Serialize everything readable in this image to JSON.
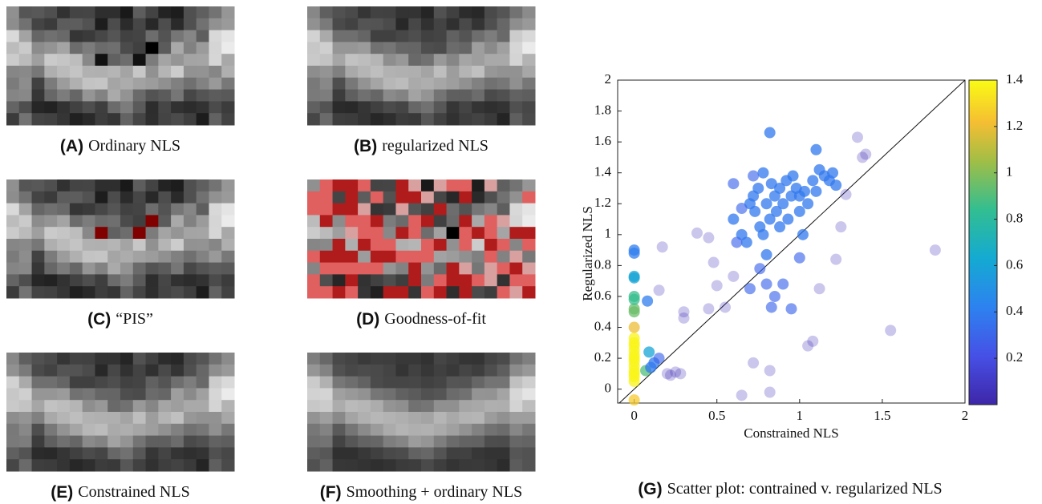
{
  "panels": [
    {
      "letter": "(A)",
      "caption": "Ordinary NLS"
    },
    {
      "letter": "(B)",
      "caption": "regularized NLS"
    },
    {
      "letter": "(C)",
      "caption": "“PIS”"
    },
    {
      "letter": "(D)",
      "caption": "Goodness-of-fit"
    },
    {
      "letter": "(E)",
      "caption": "Constrained NLS"
    },
    {
      "letter": "(F)",
      "caption": "Smoothing + ordinary NLS"
    }
  ],
  "chart_data": {
    "type": "scatter",
    "letter": "(G)",
    "title": "Scatter plot: contrained v. regularized NLS",
    "xlabel": "Constrained NLS",
    "ylabel": "Regularized NLS",
    "xlim": [
      -0.1,
      2
    ],
    "ylim": [
      -0.09,
      2
    ],
    "xticks": [
      0,
      0.5,
      1,
      1.5,
      2
    ],
    "yticks": [
      0,
      0.2,
      0.4,
      0.6,
      0.8,
      1,
      1.2,
      1.4,
      1.6,
      1.8,
      2
    ],
    "clim": [
      0,
      1.4
    ],
    "cticks": [
      0.2,
      0.4,
      0.6,
      0.8,
      1,
      1.2,
      1.4
    ],
    "x": [
      0,
      0,
      0,
      0,
      0,
      0,
      0,
      0,
      0,
      0,
      0,
      0,
      0,
      0,
      0,
      0,
      0,
      0,
      0,
      0,
      0,
      0,
      0.07,
      0.09,
      0.08,
      0.1,
      0.12,
      0.15,
      0.6,
      0.65,
      0.68,
      0.7,
      0.72,
      0.73,
      0.75,
      0.76,
      0.78,
      0.78,
      0.8,
      0.8,
      0.82,
      0.82,
      0.83,
      0.85,
      0.86,
      0.88,
      0.88,
      0.9,
      0.92,
      0.93,
      0.95,
      0.96,
      0.98,
      1.0,
      1.0,
      1.02,
      1.03,
      1.05,
      1.08,
      1.1,
      1.1,
      1.12,
      1.15,
      1.18,
      1.2,
      1.22,
      0.62,
      0.7,
      0.76,
      0.8,
      0.85,
      0.9,
      0.95,
      0.83,
      1.0,
      0.6,
      0.65,
      0.72,
      0.15,
      0.17,
      0.2,
      0.22,
      0.25,
      0.28,
      0.3,
      0.3,
      0.45,
      0.48,
      0.5,
      0.55,
      0.6,
      0.65,
      0.72,
      0.82,
      0.82,
      1.05,
      1.08,
      1.12,
      1.22,
      1.25,
      1.28,
      1.35,
      1.38,
      1.4,
      1.55,
      1.82,
      0.38,
      0.45
    ],
    "y": [
      0.05,
      0.08,
      0.1,
      0.12,
      0.15,
      0.18,
      0.2,
      0.22,
      0.25,
      0.28,
      0.3,
      0.33,
      0.4,
      -0.07,
      0.5,
      0.52,
      0.6,
      0.58,
      0.72,
      0.73,
      0.88,
      0.9,
      0.12,
      0.24,
      0.57,
      0.14,
      0.17,
      0.2,
      1.1,
      1.0,
      0.95,
      1.2,
      1.25,
      1.15,
      1.3,
      1.05,
      1.0,
      1.4,
      1.2,
      0.87,
      1.1,
      1.66,
      1.33,
      1.25,
      1.15,
      1.05,
      1.3,
      1.2,
      1.35,
      1.1,
      1.25,
      1.38,
      1.3,
      1.15,
      1.25,
      1.0,
      1.28,
      1.2,
      1.35,
      1.55,
      1.28,
      1.42,
      1.38,
      1.35,
      1.4,
      1.32,
      0.95,
      0.65,
      0.78,
      0.68,
      0.6,
      0.68,
      0.52,
      0.53,
      0.85,
      1.33,
      1.17,
      1.38,
      0.64,
      0.92,
      0.1,
      0.09,
      0.11,
      0.1,
      0.5,
      0.46,
      0.52,
      0.82,
      0.67,
      0.53,
      0.73,
      -0.04,
      0.17,
      -0.02,
      0.12,
      0.28,
      0.31,
      0.65,
      0.84,
      1.05,
      1.26,
      1.63,
      1.5,
      1.52,
      0.38,
      0.9,
      1.01,
      0.98
    ],
    "c": [
      1.38,
      1.38,
      1.38,
      1.38,
      1.38,
      1.38,
      1.38,
      1.38,
      1.38,
      1.38,
      1.38,
      1.38,
      1.2,
      1.25,
      0.95,
      0.95,
      0.85,
      0.85,
      0.6,
      0.6,
      0.4,
      0.4,
      0.9,
      0.6,
      0.4,
      0.38,
      0.38,
      0.3,
      0.38,
      0.38,
      0.38,
      0.38,
      0.38,
      0.38,
      0.38,
      0.38,
      0.38,
      0.38,
      0.38,
      0.38,
      0.38,
      0.38,
      0.38,
      0.38,
      0.38,
      0.38,
      0.38,
      0.38,
      0.38,
      0.38,
      0.38,
      0.38,
      0.38,
      0.38,
      0.38,
      0.38,
      0.38,
      0.38,
      0.38,
      0.38,
      0.38,
      0.38,
      0.38,
      0.38,
      0.38,
      0.38,
      0.3,
      0.3,
      0.3,
      0.3,
      0.3,
      0.3,
      0.3,
      0.3,
      0.3,
      0.3,
      0.3,
      0.3,
      0.05,
      0.05,
      0.05,
      0.05,
      0.05,
      0.05,
      0.05,
      0.05,
      0.05,
      0.05,
      0.05,
      0.05,
      0.05,
      0.05,
      0.05,
      0.05,
      0.05,
      0.05,
      0.05,
      0.05,
      0.05,
      0.05,
      0.05,
      0.05,
      0.05,
      0.05,
      0.05,
      0.05,
      0.05,
      0.05
    ]
  }
}
